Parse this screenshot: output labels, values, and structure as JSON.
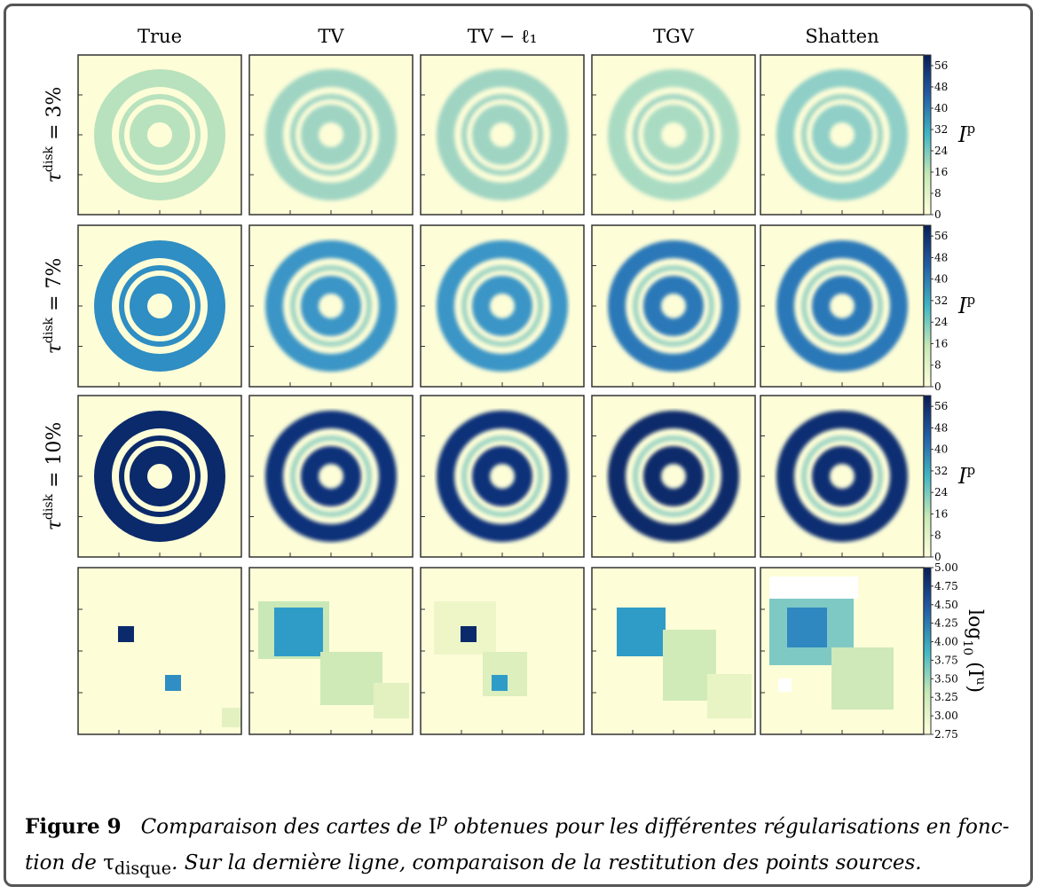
{
  "columns": [
    "True",
    "TV",
    "TV − ℓ₁",
    "TGV",
    "Shatten"
  ],
  "rows": [
    {
      "label": {
        "symbol": "τ",
        "sup": "disk",
        "rest": " = 3%"
      },
      "colorbar": {
        "ticks": [
          "0",
          "8",
          "16",
          "24",
          "32",
          "40",
          "48",
          "56"
        ],
        "label": {
          "base": "I",
          "sup": "p"
        }
      }
    },
    {
      "label": {
        "symbol": "τ",
        "sup": "disk",
        "rest": " = 7%"
      },
      "colorbar": {
        "ticks": [
          "0",
          "8",
          "16",
          "24",
          "32",
          "40",
          "48",
          "56"
        ],
        "label": {
          "base": "I",
          "sup": "p"
        }
      }
    },
    {
      "label": {
        "symbol": "τ",
        "sup": "disk",
        "rest": " = 10%"
      },
      "colorbar": {
        "ticks": [
          "0",
          "8",
          "16",
          "24",
          "32",
          "40",
          "48",
          "56"
        ],
        "label": {
          "base": "I",
          "sup": "p"
        }
      }
    },
    {
      "colorbar": {
        "ticks": [
          "2.75",
          "3.00",
          "3.25",
          "3.50",
          "3.75",
          "4.00",
          "4.25",
          "4.50",
          "4.75",
          "5.00"
        ],
        "label": {
          "base": "log",
          "sub": "10",
          "rest": " (I",
          "sup": "u",
          "close": ")"
        }
      }
    }
  ],
  "caption": {
    "label": "Figure 9",
    "text_1": "Comparaison des cartes de ",
    "symbol": "I",
    "sup": "p",
    "text_2": " obtenues pour les différentes régularisations en fonc-",
    "text_3": "tion de ",
    "tau": "τ",
    "sub": "disque",
    "text_4": ". Sur la dernière ligne, comparaison de la restitution des points sources."
  }
}
